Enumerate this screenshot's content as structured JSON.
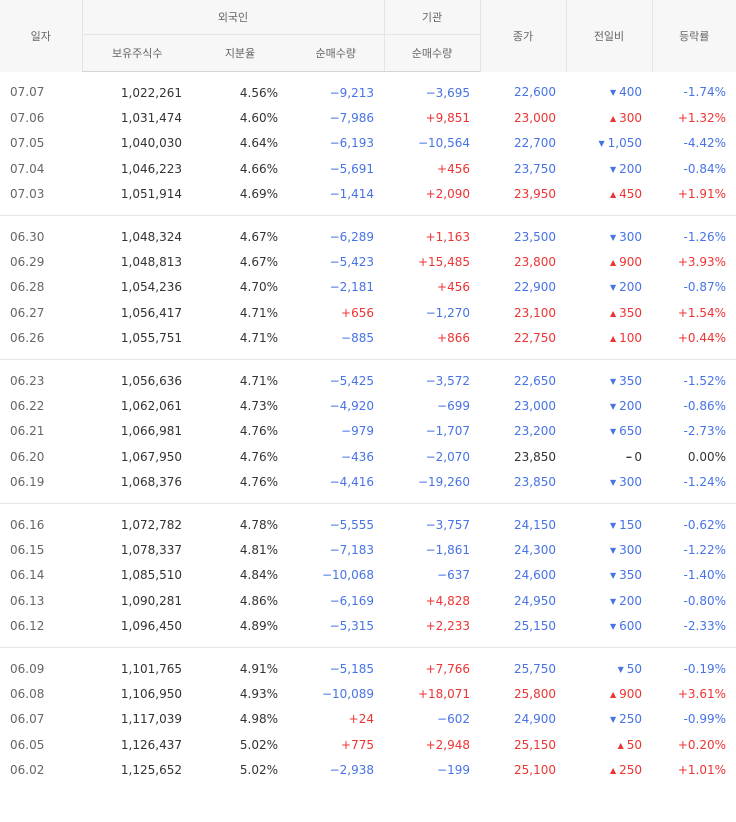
{
  "headers": {
    "date": "일자",
    "foreign": "외국인",
    "institution": "기관",
    "close": "종가",
    "change": "전일비",
    "rate": "등락률",
    "holdings": "보유주식수",
    "share": "지분율",
    "net_foreign": "순매수량",
    "net_inst": "순매수량"
  },
  "groups": [
    [
      {
        "date": "07.07",
        "holdings": "1,022,261",
        "share": "4.56%",
        "foreign": "−9,213",
        "inst": "−3,695",
        "close": "22,600",
        "change_dir": "down",
        "change": "400",
        "rate": "-1.74%"
      },
      {
        "date": "07.06",
        "holdings": "1,031,474",
        "share": "4.60%",
        "foreign": "−7,986",
        "inst": "+9,851",
        "close": "23,000",
        "change_dir": "up",
        "change": "300",
        "rate": "+1.32%"
      },
      {
        "date": "07.05",
        "holdings": "1,040,030",
        "share": "4.64%",
        "foreign": "−6,193",
        "inst": "−10,564",
        "close": "22,700",
        "change_dir": "down",
        "change": "1,050",
        "rate": "-4.42%"
      },
      {
        "date": "07.04",
        "holdings": "1,046,223",
        "share": "4.66%",
        "foreign": "−5,691",
        "inst": "+456",
        "close": "23,750",
        "change_dir": "down",
        "change": "200",
        "rate": "-0.84%"
      },
      {
        "date": "07.03",
        "holdings": "1,051,914",
        "share": "4.69%",
        "foreign": "−1,414",
        "inst": "+2,090",
        "close": "23,950",
        "change_dir": "up",
        "change": "450",
        "rate": "+1.91%"
      }
    ],
    [
      {
        "date": "06.30",
        "holdings": "1,048,324",
        "share": "4.67%",
        "foreign": "−6,289",
        "inst": "+1,163",
        "close": "23,500",
        "change_dir": "down",
        "change": "300",
        "rate": "-1.26%"
      },
      {
        "date": "06.29",
        "holdings": "1,048,813",
        "share": "4.67%",
        "foreign": "−5,423",
        "inst": "+15,485",
        "close": "23,800",
        "change_dir": "up",
        "change": "900",
        "rate": "+3.93%"
      },
      {
        "date": "06.28",
        "holdings": "1,054,236",
        "share": "4.70%",
        "foreign": "−2,181",
        "inst": "+456",
        "close": "22,900",
        "change_dir": "down",
        "change": "200",
        "rate": "-0.87%"
      },
      {
        "date": "06.27",
        "holdings": "1,056,417",
        "share": "4.71%",
        "foreign": "+656",
        "inst": "−1,270",
        "close": "23,100",
        "change_dir": "up",
        "change": "350",
        "rate": "+1.54%"
      },
      {
        "date": "06.26",
        "holdings": "1,055,751",
        "share": "4.71%",
        "foreign": "−885",
        "inst": "+866",
        "close": "22,750",
        "change_dir": "up",
        "change": "100",
        "rate": "+0.44%"
      }
    ],
    [
      {
        "date": "06.23",
        "holdings": "1,056,636",
        "share": "4.71%",
        "foreign": "−5,425",
        "inst": "−3,572",
        "close": "22,650",
        "change_dir": "down",
        "change": "350",
        "rate": "-1.52%"
      },
      {
        "date": "06.22",
        "holdings": "1,062,061",
        "share": "4.73%",
        "foreign": "−4,920",
        "inst": "−699",
        "close": "23,000",
        "change_dir": "down",
        "change": "200",
        "rate": "-0.86%"
      },
      {
        "date": "06.21",
        "holdings": "1,066,981",
        "share": "4.76%",
        "foreign": "−979",
        "inst": "−1,707",
        "close": "23,200",
        "change_dir": "down",
        "change": "650",
        "rate": "-2.73%"
      },
      {
        "date": "06.20",
        "holdings": "1,067,950",
        "share": "4.76%",
        "foreign": "−436",
        "inst": "−2,070",
        "close": "23,850",
        "change_dir": "flat",
        "change": "0",
        "rate": "0.00%"
      },
      {
        "date": "06.19",
        "holdings": "1,068,376",
        "share": "4.76%",
        "foreign": "−4,416",
        "inst": "−19,260",
        "close": "23,850",
        "change_dir": "down",
        "change": "300",
        "rate": "-1.24%"
      }
    ],
    [
      {
        "date": "06.16",
        "holdings": "1,072,782",
        "share": "4.78%",
        "foreign": "−5,555",
        "inst": "−3,757",
        "close": "24,150",
        "change_dir": "down",
        "change": "150",
        "rate": "-0.62%"
      },
      {
        "date": "06.15",
        "holdings": "1,078,337",
        "share": "4.81%",
        "foreign": "−7,183",
        "inst": "−1,861",
        "close": "24,300",
        "change_dir": "down",
        "change": "300",
        "rate": "-1.22%"
      },
      {
        "date": "06.14",
        "holdings": "1,085,510",
        "share": "4.84%",
        "foreign": "−10,068",
        "inst": "−637",
        "close": "24,600",
        "change_dir": "down",
        "change": "350",
        "rate": "-1.40%"
      },
      {
        "date": "06.13",
        "holdings": "1,090,281",
        "share": "4.86%",
        "foreign": "−6,169",
        "inst": "+4,828",
        "close": "24,950",
        "change_dir": "down",
        "change": "200",
        "rate": "-0.80%"
      },
      {
        "date": "06.12",
        "holdings": "1,096,450",
        "share": "4.89%",
        "foreign": "−5,315",
        "inst": "+2,233",
        "close": "25,150",
        "change_dir": "down",
        "change": "600",
        "rate": "-2.33%"
      }
    ],
    [
      {
        "date": "06.09",
        "holdings": "1,101,765",
        "share": "4.91%",
        "foreign": "−5,185",
        "inst": "+7,766",
        "close": "25,750",
        "change_dir": "down",
        "change": "50",
        "rate": "-0.19%"
      },
      {
        "date": "06.08",
        "holdings": "1,106,950",
        "share": "4.93%",
        "foreign": "−10,089",
        "inst": "+18,071",
        "close": "25,800",
        "change_dir": "up",
        "change": "900",
        "rate": "+3.61%"
      },
      {
        "date": "06.07",
        "holdings": "1,117,039",
        "share": "4.98%",
        "foreign": "+24",
        "inst": "−602",
        "close": "24,900",
        "change_dir": "down",
        "change": "250",
        "rate": "-0.99%"
      },
      {
        "date": "06.05",
        "holdings": "1,126,437",
        "share": "5.02%",
        "foreign": "+775",
        "inst": "+2,948",
        "close": "25,150",
        "change_dir": "up",
        "change": "50",
        "rate": "+0.20%"
      },
      {
        "date": "06.02",
        "holdings": "1,125,652",
        "share": "5.02%",
        "foreign": "−2,938",
        "inst": "−199",
        "close": "25,100",
        "change_dir": "up",
        "change": "250",
        "rate": "+1.01%"
      }
    ]
  ],
  "colors": {
    "up": "#ee3333",
    "down": "#4773e6",
    "neutral": "#333333"
  },
  "icons": {
    "up": "triangle-up-icon",
    "down": "triangle-down-icon",
    "flat": "flat-dash-icon"
  }
}
